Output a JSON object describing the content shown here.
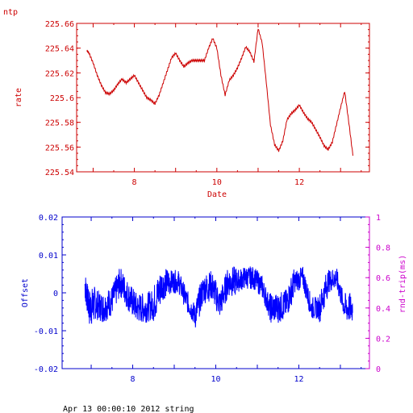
{
  "header": {
    "label": "ntp"
  },
  "footer": {
    "text": "Apr 13 00:00:10 2012 string"
  },
  "colors": {
    "rate": "#cc0000",
    "offset": "#0000ff",
    "rtt": "#cc00cc",
    "axis_blue": "#0000cc"
  },
  "chart_data": [
    {
      "type": "line",
      "xlabel": "Date",
      "ylabel": "rate",
      "xlim": [
        6.6,
        13.7
      ],
      "ylim": [
        225.54,
        225.66
      ],
      "x_ticks": [
        8,
        10,
        12
      ],
      "y_ticks": [
        225.54,
        225.56,
        225.58,
        225.6,
        225.62,
        225.64,
        225.66
      ],
      "y_tick_labels": [
        "225.54",
        "225.56",
        "225.58",
        "225.6",
        "225.62",
        "225.64",
        "225.66"
      ],
      "series": [
        {
          "x": [
            6.85,
            6.9,
            7.0,
            7.1,
            7.2,
            7.3,
            7.4,
            7.5,
            7.6,
            7.7,
            7.8,
            7.9,
            8.0,
            8.1,
            8.2,
            8.3,
            8.4,
            8.5,
            8.6,
            8.7,
            8.8,
            8.9,
            9.0,
            9.1,
            9.2,
            9.3,
            9.4,
            9.5,
            9.6,
            9.7,
            9.8,
            9.9,
            10.0,
            10.1,
            10.2,
            10.3,
            10.4,
            10.5,
            10.6,
            10.7,
            10.8,
            10.9,
            11.0,
            11.1,
            11.2,
            11.3,
            11.4,
            11.5,
            11.6,
            11.7,
            11.8,
            11.9,
            12.0,
            12.1,
            12.2,
            12.3,
            12.4,
            12.5,
            12.6,
            12.7,
            12.8,
            12.9,
            13.0,
            13.1,
            13.2,
            13.3
          ],
          "values": [
            225.638,
            225.636,
            225.628,
            225.618,
            225.61,
            225.604,
            225.603,
            225.606,
            225.611,
            225.615,
            225.612,
            225.615,
            225.618,
            225.612,
            225.606,
            225.6,
            225.598,
            225.595,
            225.602,
            225.612,
            225.622,
            225.632,
            225.636,
            225.63,
            225.625,
            225.628,
            225.63,
            225.63,
            225.63,
            225.63,
            225.64,
            225.648,
            225.64,
            225.618,
            225.602,
            225.614,
            225.618,
            225.624,
            225.632,
            225.641,
            225.637,
            225.629,
            225.656,
            225.644,
            225.612,
            225.578,
            225.562,
            225.557,
            225.565,
            225.582,
            225.587,
            225.59,
            225.594,
            225.588,
            225.583,
            225.58,
            225.574,
            225.568,
            225.561,
            225.558,
            225.564,
            225.578,
            225.592,
            225.605,
            225.58,
            225.553
          ]
        }
      ]
    },
    {
      "type": "line",
      "ylabel": "Offset",
      "y2label": "rnd-trip(ms)",
      "xlim": [
        6.6,
        13.7
      ],
      "ylim": [
        -0.02,
        0.02
      ],
      "y2lim": [
        0,
        1
      ],
      "x_ticks": [
        8,
        10,
        12
      ],
      "y_ticks": [
        -0.02,
        -0.01,
        0,
        0.01,
        0.02
      ],
      "y_tick_labels": [
        "-0.02",
        "-0.01",
        "0",
        "0.01",
        "0.02"
      ],
      "y2_ticks": [
        0,
        0.2,
        0.4,
        0.6,
        0.8,
        1
      ],
      "y2_tick_labels": [
        "0",
        "0.2",
        "0.4",
        "0.6",
        "0.8",
        "1"
      ],
      "series": [
        {
          "x": [
            6.85,
            6.95,
            7.1,
            7.3,
            7.5,
            7.7,
            7.9,
            8.1,
            8.3,
            8.5,
            8.7,
            8.9,
            9.1,
            9.3,
            9.5,
            9.7,
            9.9,
            10.1,
            10.3,
            10.5,
            10.7,
            10.9,
            11.1,
            11.3,
            11.5,
            11.7,
            11.9,
            12.1,
            12.3,
            12.5,
            12.7,
            12.9,
            13.1,
            13.3
          ],
          "values": [
            0.002,
            -0.004,
            -0.003,
            -0.004,
            -0.002,
            0.003,
            -0.001,
            -0.004,
            -0.004,
            -0.003,
            0.002,
            0.003,
            0.003,
            -0.002,
            -0.006,
            0.001,
            0.002,
            -0.003,
            0.003,
            0.003,
            0.004,
            0.004,
            0.002,
            -0.004,
            -0.004,
            -0.003,
            0.003,
            0.004,
            -0.004,
            -0.004,
            0.003,
            0.004,
            -0.004,
            -0.004
          ],
          "spread": [
            0.004,
            0.005,
            0.004,
            0.004,
            0.004,
            0.004,
            0.004,
            0.004,
            0.004,
            0.005,
            0.004,
            0.003,
            0.003,
            0.003,
            0.004,
            0.004,
            0.004,
            0.004,
            0.004,
            0.003,
            0.003,
            0.003,
            0.003,
            0.004,
            0.004,
            0.004,
            0.003,
            0.003,
            0.003,
            0.004,
            0.003,
            0.003,
            0.004,
            0.004
          ]
        }
      ]
    }
  ]
}
